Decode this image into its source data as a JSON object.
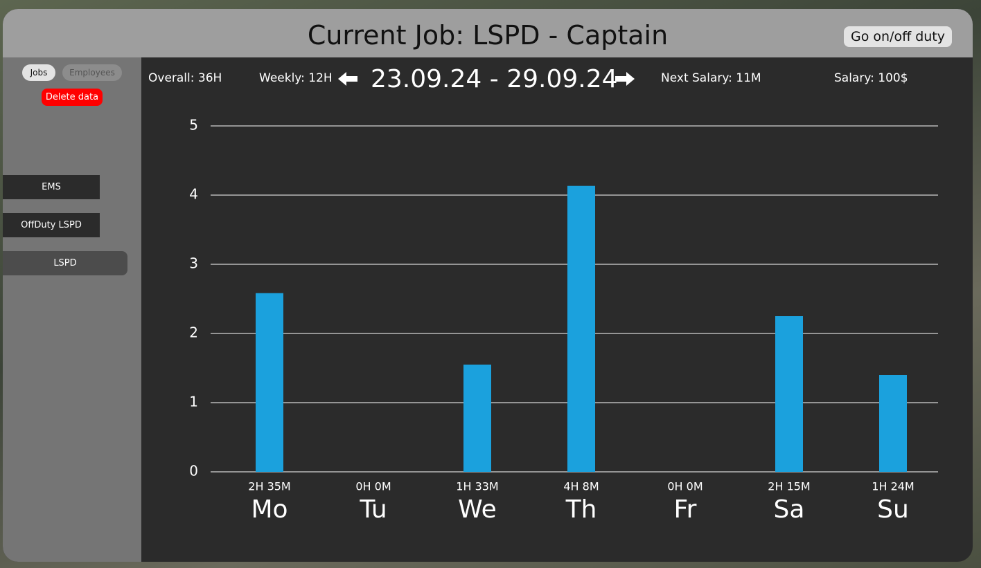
{
  "header": {
    "title": "Current Job: LSPD - Captain",
    "duty_button": "Go on/off duty"
  },
  "sidebar": {
    "tabs": [
      "Jobs",
      "Employees"
    ],
    "delete_button": "Delete data",
    "jobs": [
      "EMS",
      "OffDuty LSPD",
      "LSPD"
    ]
  },
  "stats": {
    "overall": "Overall: 36H",
    "weekly": "Weekly: 12H",
    "week_range": "23.09.24 - 29.09.24",
    "next_salary": "Next Salary: 11M",
    "salary": "Salary: 100$"
  },
  "chart_data": {
    "type": "bar",
    "categories": [
      "Mo",
      "Tu",
      "We",
      "Th",
      "Fr",
      "Sa",
      "Su"
    ],
    "values": [
      2.583,
      0,
      1.55,
      4.133,
      0,
      2.25,
      1.4
    ],
    "value_labels": [
      "2H 35M",
      "0H 0M",
      "1H 33M",
      "4H 8M",
      "0H 0M",
      "2H 15M",
      "1H 24M"
    ],
    "color": "#1ba1dd",
    "ylim": [
      0,
      5
    ],
    "yticks": [
      0,
      1,
      2,
      3,
      4,
      5
    ],
    "grid": true
  }
}
